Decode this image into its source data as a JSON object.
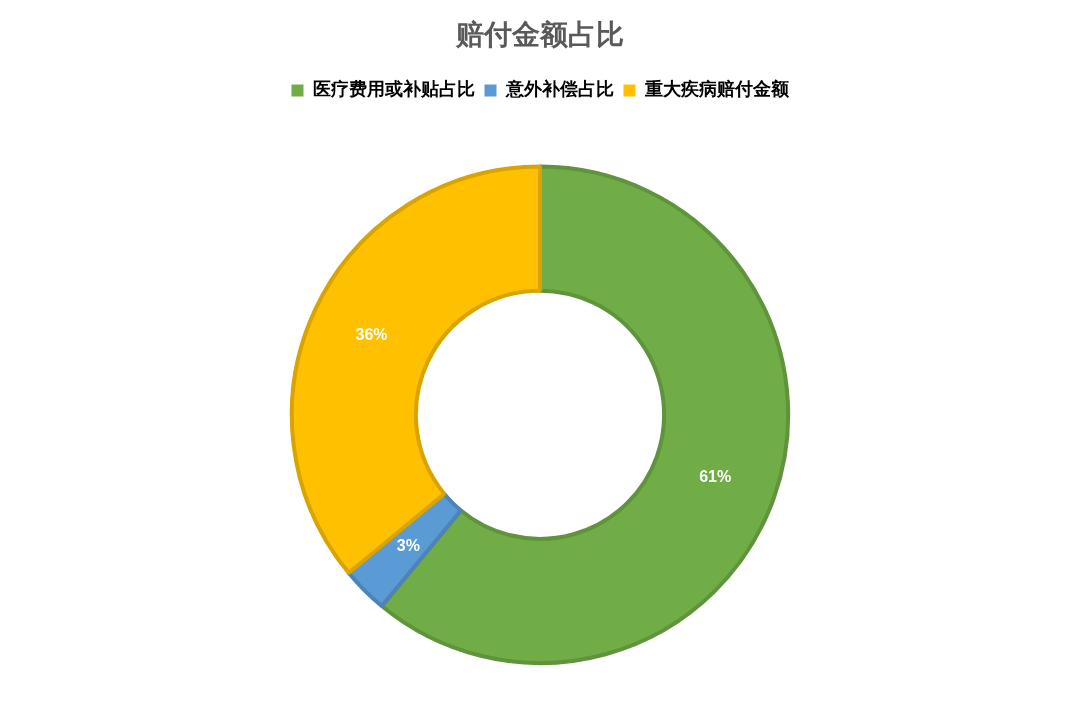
{
  "chart_data": {
    "type": "donut",
    "title": "赔付金额占比",
    "categories": [
      "医疗费用或补贴占比",
      "意外补偿占比",
      "重大疾病赔付金额"
    ],
    "values": [
      61,
      3,
      36
    ],
    "colors": [
      "#70ad47",
      "#5b9bd5",
      "#ffc000"
    ],
    "legend": "top",
    "value_labels": [
      "61%",
      "3%",
      "36%"
    ]
  }
}
